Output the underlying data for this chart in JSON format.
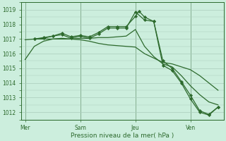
{
  "background_color": "#cceedd",
  "grid_color": "#aaccbb",
  "line_color": "#2d6a2d",
  "marker_color": "#2d6a2d",
  "xlabel": "Pression niveau de la mer( hPa )",
  "ylim": [
    1011.5,
    1019.5
  ],
  "yticks": [
    1012,
    1013,
    1014,
    1015,
    1016,
    1017,
    1018,
    1019
  ],
  "xtick_labels": [
    "Mer",
    "Sam",
    "Jeu",
    "Ven"
  ],
  "xtick_positions": [
    0,
    30,
    60,
    90
  ],
  "vline_positions": [
    0,
    30,
    60,
    90
  ],
  "xlim": [
    -2,
    108
  ],
  "lines": [
    {
      "x": [
        0,
        5,
        10,
        15,
        20,
        25,
        30,
        35,
        40,
        45,
        50,
        55,
        60,
        65,
        70,
        75,
        80,
        85,
        90,
        95,
        100,
        105
      ],
      "y": [
        1015.6,
        1016.5,
        1016.85,
        1017.0,
        1017.0,
        1017.0,
        1016.95,
        1016.85,
        1016.7,
        1016.6,
        1016.55,
        1016.5,
        1016.45,
        1016.0,
        1015.7,
        1015.4,
        1015.3,
        1015.1,
        1014.9,
        1014.5,
        1014.0,
        1013.5
      ],
      "has_markers": false
    },
    {
      "x": [
        0,
        5,
        10,
        15,
        20,
        25,
        30,
        35,
        40,
        45,
        50,
        55,
        60,
        65,
        70,
        75,
        80,
        85,
        90,
        95,
        100,
        105
      ],
      "y": [
        1016.95,
        1017.0,
        1017.0,
        1017.0,
        1017.05,
        1017.0,
        1017.05,
        1017.05,
        1017.1,
        1017.1,
        1017.15,
        1017.2,
        1017.65,
        1016.5,
        1015.8,
        1015.3,
        1015.1,
        1014.5,
        1013.8,
        1013.2,
        1012.7,
        1012.5
      ],
      "has_markers": false
    },
    {
      "x": [
        5,
        10,
        15,
        20,
        25,
        30,
        35,
        40,
        45,
        50,
        55,
        60,
        65,
        70,
        75,
        80,
        85,
        90,
        95,
        100,
        105
      ],
      "y": [
        1017.0,
        1017.05,
        1017.2,
        1017.3,
        1017.05,
        1017.2,
        1017.05,
        1017.35,
        1017.75,
        1017.75,
        1017.75,
        1018.85,
        1018.3,
        1018.2,
        1015.5,
        1015.0,
        1014.1,
        1013.15,
        1012.1,
        1011.85,
        1012.35
      ],
      "has_markers": true
    },
    {
      "x": [
        5,
        10,
        15,
        20,
        25,
        30,
        35,
        40,
        45,
        50,
        55,
        60,
        62,
        65,
        70,
        75,
        80,
        85,
        90,
        95,
        100,
        105
      ],
      "y": [
        1017.0,
        1017.1,
        1017.2,
        1017.4,
        1017.15,
        1017.25,
        1017.15,
        1017.45,
        1017.85,
        1017.85,
        1017.85,
        1018.55,
        1018.9,
        1018.5,
        1018.2,
        1015.2,
        1014.85,
        1014.0,
        1012.9,
        1012.0,
        1011.8,
        1012.35
      ],
      "has_markers": true
    }
  ],
  "figsize": [
    3.2,
    2.0
  ],
  "dpi": 100
}
